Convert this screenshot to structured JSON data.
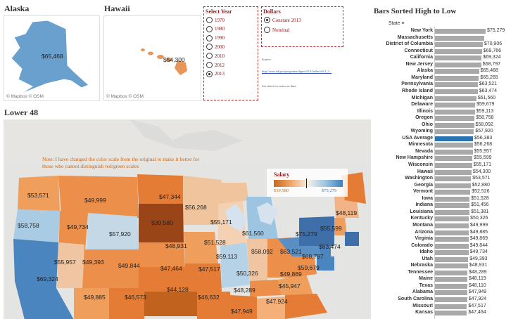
{
  "colors": {
    "low": "#a65a2a",
    "mid": "#f2e8dc",
    "high": "#3f7fbd",
    "avg_bar": "#2c73b4",
    "bar": "#a9a9a9"
  },
  "alaska": {
    "title": "Alaska",
    "value": "$65,468",
    "credit": "© Mapbox © OSM"
  },
  "hawaii": {
    "title": "Hawaii",
    "value": "$54,300",
    "credit": "© Mapbox © OSM"
  },
  "select_year": {
    "title": "Select Year",
    "options": [
      "1970",
      "1980",
      "1990",
      "2000",
      "2010",
      "2012",
      "2013"
    ],
    "selected": "2013"
  },
  "dollars": {
    "title": "Dollars",
    "options": [
      "Constant 2013",
      "Nominal"
    ],
    "selected": "Constant 2013",
    "source_label": "Source:",
    "source_link": "http://nces.ed.gov/programs/digest/d13/tables/dt13_2...",
    "note": "See sheet for notes on data."
  },
  "lower48": {
    "title": "Lower 48",
    "note": "Note: I have changed the color scale from the original to make it better for those who cannot distinguish red/green scales",
    "legend": {
      "title": "Salary",
      "min": "$39,580",
      "max": "$75,279"
    },
    "state_values": [
      "$53,571",
      "$49,999",
      "$47,344",
      "$56,268",
      "$48,119",
      "$58,758",
      "$49,734",
      "$57,920",
      "$39,580",
      "$55,171",
      "$61,560",
      "$75,279",
      "$55,599",
      "$63,521",
      "$68,797",
      "$63,474",
      "$58,092",
      "$48,931",
      "$51,528",
      "$59,113",
      "$59,679",
      "$55,957",
      "$49,393",
      "$49,844",
      "$47,464",
      "$47,517",
      "$50,326",
      "$49,869",
      "$69,324",
      "$49,885",
      "$46,573",
      "$44,128",
      "$46,632",
      "$48,289",
      "$45,947",
      "$47,924",
      "$47,949"
    ]
  },
  "bars": {
    "title": "Bars Sorted High to Low",
    "header": "State",
    "rows": [
      {
        "state": "New York",
        "value": 75279,
        "label": "$75,279"
      },
      {
        "state": "Massachusetts",
        "value": 73129,
        "label": ""
      },
      {
        "state": "District of Columbia",
        "value": 70906,
        "label": "$70,906"
      },
      {
        "state": "Connecticut",
        "value": 69766,
        "label": "$69,766"
      },
      {
        "state": "California",
        "value": 69324,
        "label": "$69,324"
      },
      {
        "state": "New Jersey",
        "value": 68797,
        "label": "$68,797"
      },
      {
        "state": "Alaska",
        "value": 65468,
        "label": "$65,468"
      },
      {
        "state": "Maryland",
        "value": 65265,
        "label": "$65,265"
      },
      {
        "state": "Pennsylvania",
        "value": 63521,
        "label": "$63,521"
      },
      {
        "state": "Rhode Island",
        "value": 63474,
        "label": "$63,474"
      },
      {
        "state": "Michigan",
        "value": 61560,
        "label": "$61,560"
      },
      {
        "state": "Delaware",
        "value": 59679,
        "label": "$59,679"
      },
      {
        "state": "Illinois",
        "value": 59113,
        "label": "$59,113"
      },
      {
        "state": "Oregon",
        "value": 58758,
        "label": "$58,758"
      },
      {
        "state": "Ohio",
        "value": 58092,
        "label": "$58,092"
      },
      {
        "state": "Wyoming",
        "value": 57920,
        "label": "$57,920"
      },
      {
        "state": "USA Average",
        "value": 56383,
        "label": "$56,383",
        "avg": true
      },
      {
        "state": "Minnesota",
        "value": 56268,
        "label": "$56,268"
      },
      {
        "state": "Nevada",
        "value": 55957,
        "label": "$55,957"
      },
      {
        "state": "New Hampshire",
        "value": 55599,
        "label": "$55,599"
      },
      {
        "state": "Wisconsin",
        "value": 55171,
        "label": "$55,171"
      },
      {
        "state": "Hawaii",
        "value": 54300,
        "label": "$54,300"
      },
      {
        "state": "Washington",
        "value": 53571,
        "label": "$53,571"
      },
      {
        "state": "Georgia",
        "value": 52880,
        "label": "$52,880"
      },
      {
        "state": "Vermont",
        "value": 52526,
        "label": "$52,526"
      },
      {
        "state": "Iowa",
        "value": 51528,
        "label": "$51,528"
      },
      {
        "state": "Indiana",
        "value": 51456,
        "label": "$51,456"
      },
      {
        "state": "Louisiana",
        "value": 51381,
        "label": "$51,381"
      },
      {
        "state": "Kentucky",
        "value": 50326,
        "label": "$50,326"
      },
      {
        "state": "Montana",
        "value": 49999,
        "label": "$49,999"
      },
      {
        "state": "Arizona",
        "value": 49885,
        "label": "$49,885"
      },
      {
        "state": "Virginia",
        "value": 49869,
        "label": "$49,869"
      },
      {
        "state": "Colorado",
        "value": 49844,
        "label": "$49,844"
      },
      {
        "state": "Idaho",
        "value": 49734,
        "label": "$49,734"
      },
      {
        "state": "Utah",
        "value": 49393,
        "label": "$49,393"
      },
      {
        "state": "Nebraska",
        "value": 48931,
        "label": "$48,931"
      },
      {
        "state": "Tennessee",
        "value": 48289,
        "label": "$48,289"
      },
      {
        "state": "Maine",
        "value": 48119,
        "label": "$48,119"
      },
      {
        "state": "Texas",
        "value": 48110,
        "label": "$48,110"
      },
      {
        "state": "Alabama",
        "value": 47949,
        "label": "$47,949"
      },
      {
        "state": "South Carolina",
        "value": 47924,
        "label": "$47,924"
      },
      {
        "state": "Missouri",
        "value": 47517,
        "label": "$47,517"
      },
      {
        "state": "Kansas",
        "value": 47464,
        "label": "$47,464"
      }
    ]
  }
}
